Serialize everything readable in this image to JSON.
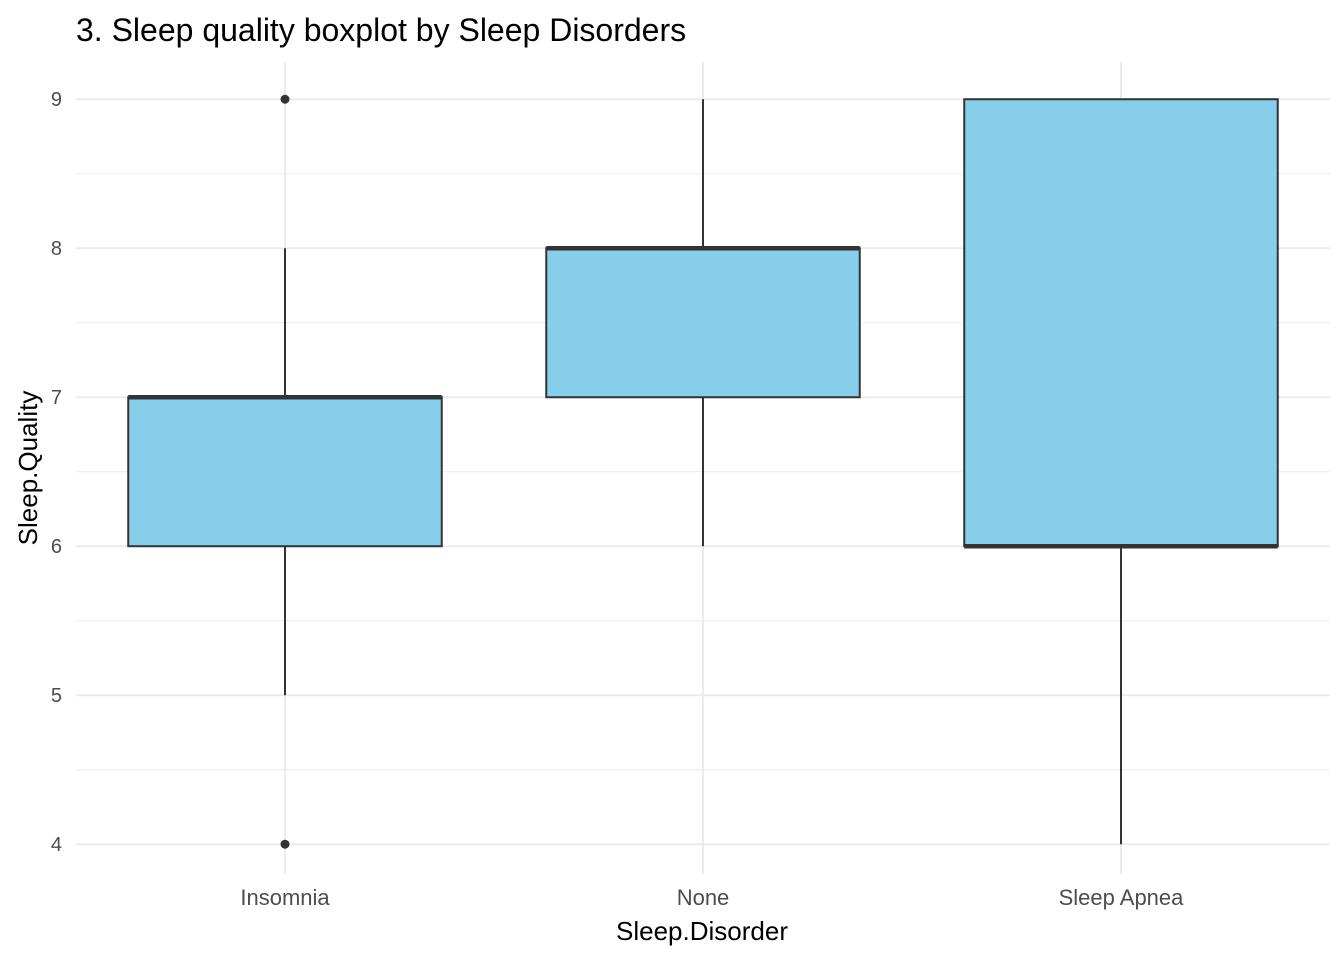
{
  "chart_data": {
    "type": "boxplot",
    "title": "3. Sleep quality boxplot by Sleep Disorders",
    "xlabel": "Sleep.Disorder",
    "ylabel": "Sleep.Quality",
    "ylim": [
      3.8,
      9.25
    ],
    "yticks": [
      4,
      5,
      6,
      7,
      8,
      9
    ],
    "grid": true,
    "categories": [
      "Insomnia",
      "None",
      "Sleep Apnea"
    ],
    "boxes": [
      {
        "category": "Insomnia",
        "whisker_low": 5,
        "q1": 6,
        "median": 7,
        "q3": 7,
        "whisker_high": 8,
        "outliers": [
          4,
          9
        ]
      },
      {
        "category": "None",
        "whisker_low": 6,
        "q1": 7,
        "median": 8,
        "q3": 8,
        "whisker_high": 9,
        "outliers": []
      },
      {
        "category": "Sleep Apnea",
        "whisker_low": 4,
        "q1": 6,
        "median": 6,
        "q3": 9,
        "whisker_high": 9,
        "outliers": []
      }
    ],
    "colors": {
      "box_fill": "#87CEEB",
      "box_stroke": "#333333",
      "grid": "#EBEBEB",
      "text": "#4D4D4D"
    }
  }
}
